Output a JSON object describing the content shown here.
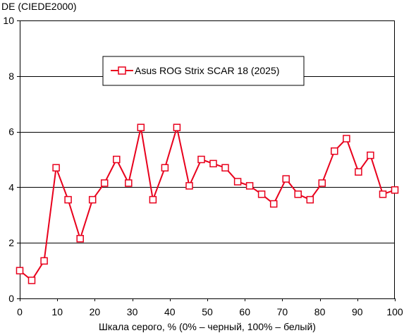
{
  "chart_data": {
    "type": "line",
    "ylabel": "DE (CIEDE2000)",
    "xlabel": "Шкала серого, % (0% – черный, 100% – белый)",
    "xlim": [
      0,
      100
    ],
    "ylim": [
      0,
      10
    ],
    "x_ticks": [
      0,
      10,
      20,
      30,
      40,
      50,
      60,
      70,
      80,
      90,
      100
    ],
    "y_ticks": [
      0,
      2,
      4,
      6,
      8,
      10
    ],
    "x_tick_labels": [
      "0",
      "10",
      "20",
      "30",
      "40",
      "50",
      "60",
      "70",
      "80",
      "90",
      "100"
    ],
    "y_tick_labels": [
      "0",
      "2",
      "4",
      "6",
      "8",
      "10"
    ],
    "grid": "horizontal",
    "legend_position": "top-left",
    "series": [
      {
        "name": "Asus ROG Strix SCAR 18 (2025)",
        "color": "#e8001c",
        "marker": "open-square",
        "x": [
          0,
          3.2,
          6.5,
          9.7,
          12.9,
          16.1,
          19.4,
          22.6,
          25.8,
          29.0,
          32.3,
          35.5,
          38.7,
          41.9,
          45.2,
          48.4,
          51.6,
          54.8,
          58.1,
          61.3,
          64.5,
          67.7,
          71.0,
          74.2,
          77.4,
          80.6,
          83.9,
          87.1,
          90.3,
          93.5,
          96.8,
          100
        ],
        "y": [
          1.0,
          0.65,
          1.35,
          4.7,
          3.55,
          2.15,
          3.55,
          4.15,
          5.0,
          4.15,
          6.15,
          3.55,
          4.7,
          6.15,
          4.05,
          5.0,
          4.85,
          4.7,
          4.2,
          4.05,
          3.75,
          3.4,
          4.3,
          3.75,
          3.55,
          4.15,
          5.3,
          5.75,
          4.55,
          5.15,
          3.75,
          3.9
        ]
      }
    ]
  }
}
